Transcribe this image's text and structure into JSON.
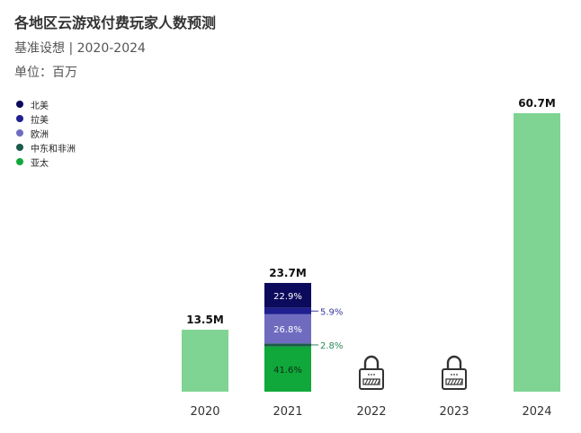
{
  "header": {
    "title": "各地区云游戏付费玩家人数预测",
    "subtitle": "基准设想 | 2020-2024",
    "unit": "单位：百万"
  },
  "colors": {
    "north_america": "#0b0a5c",
    "latin_america": "#1f1f8f",
    "europe": "#6f6cc0",
    "mea": "#1c5a4a",
    "apac": "#10a83a",
    "total_bar": "#7fd493",
    "lock": "#333333"
  },
  "legend": [
    {
      "label": "北美",
      "color": "#0b0a5c"
    },
    {
      "label": "拉美",
      "color": "#1f1f8f"
    },
    {
      "label": "欧洲",
      "color": "#6f6cc0"
    },
    {
      "label": "中东和非洲",
      "color": "#1c5a4a"
    },
    {
      "label": "亚太",
      "color": "#10a83a"
    }
  ],
  "chart_data": {
    "type": "bar",
    "title": "各地区云游戏付费玩家人数预测",
    "subtitle": "基准设想 | 2020-2024",
    "ylabel": "单位：百万",
    "categories": [
      "2020",
      "2021",
      "2022",
      "2023",
      "2024"
    ],
    "values": [
      13.5,
      23.7,
      null,
      null,
      60.7
    ],
    "value_labels": [
      "13.5M",
      "23.7M",
      "",
      "",
      "60.7M"
    ],
    "locked": [
      "2022",
      "2023"
    ],
    "stacked_2021": [
      {
        "name": "亚太",
        "share": 41.6,
        "label": "41.6%",
        "color": "#10a83a"
      },
      {
        "name": "中东和非洲",
        "share": 2.8,
        "label": "2.8%",
        "color": "#1c5a4a",
        "outside": true
      },
      {
        "name": "欧洲",
        "share": 26.8,
        "label": "26.8%",
        "color": "#6f6cc0"
      },
      {
        "name": "拉美",
        "share": 5.9,
        "label": "5.9%",
        "color": "#1f1f8f",
        "outside": true
      },
      {
        "name": "北美",
        "share": 22.9,
        "label": "22.9%",
        "color": "#0b0a5c"
      }
    ],
    "ylim": [
      0,
      60.7
    ],
    "grid": false,
    "legend_position": "top-left"
  }
}
